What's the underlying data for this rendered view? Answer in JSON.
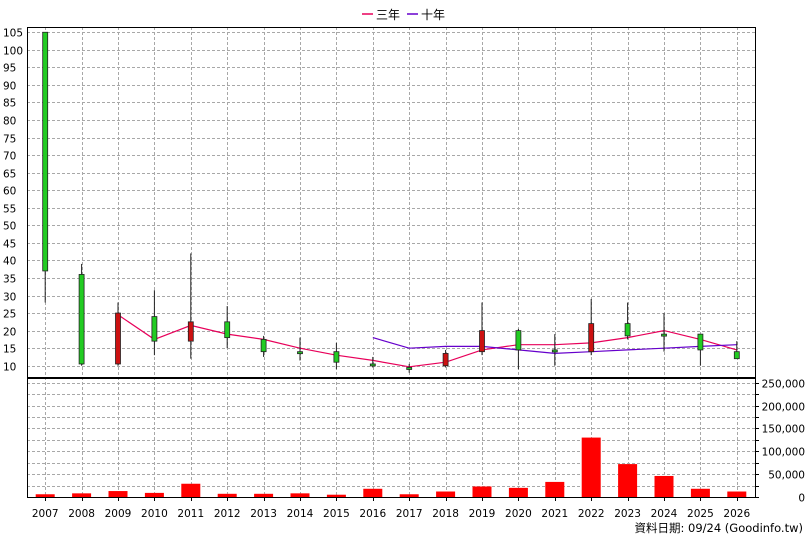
{
  "chart_data": {
    "type": "candlestick-with-volume",
    "legend_position": "top-center",
    "grid": true,
    "legend": [
      {
        "name": "三年",
        "color": "#e8005a"
      },
      {
        "name": "十年",
        "color": "#6600cc"
      }
    ],
    "years": [
      "2007",
      "2008",
      "2009",
      "2010",
      "2011",
      "2012",
      "2013",
      "2014",
      "2015",
      "2016",
      "2017",
      "2018",
      "2019",
      "2020",
      "2021",
      "2022",
      "2023",
      "2024",
      "2025",
      "2026"
    ],
    "price_axis": {
      "min": 6.5,
      "max": 106.5,
      "ticks": [
        10,
        15,
        20,
        25,
        30,
        35,
        40,
        45,
        50,
        55,
        60,
        65,
        70,
        75,
        80,
        85,
        90,
        95,
        100,
        105
      ]
    },
    "candles": [
      {
        "year": "2007",
        "open": 105,
        "close": 37,
        "high": 105,
        "low": 28,
        "color": "#22cc22"
      },
      {
        "year": "2008",
        "open": 36,
        "close": 10.5,
        "high": 39,
        "low": 10,
        "color": "#22cc22"
      },
      {
        "year": "2009",
        "open": 10.5,
        "close": 25,
        "high": 28,
        "low": 10,
        "color": "#cc1111"
      },
      {
        "year": "2010",
        "open": 24,
        "close": 17,
        "high": 31.5,
        "low": 13,
        "color": "#22cc22"
      },
      {
        "year": "2011",
        "open": 17,
        "close": 22.5,
        "high": 42,
        "low": 12,
        "color": "#cc1111"
      },
      {
        "year": "2012",
        "open": 22.5,
        "close": 18,
        "high": 27,
        "low": 15,
        "color": "#22cc22"
      },
      {
        "year": "2013",
        "open": 17.5,
        "close": 14,
        "high": 18.5,
        "low": 12.5,
        "color": "#22cc22"
      },
      {
        "year": "2014",
        "open": 14,
        "close": 13.5,
        "high": 18,
        "low": 11.5,
        "color": "#22cc22"
      },
      {
        "year": "2015",
        "open": 14,
        "close": 11,
        "high": 16.5,
        "low": 9,
        "color": "#22cc22"
      },
      {
        "year": "2016",
        "open": 10.5,
        "close": 10,
        "high": 12.5,
        "low": 9.5,
        "color": "#22cc22"
      },
      {
        "year": "2017",
        "open": 9.5,
        "close": 9.5,
        "high": 10.5,
        "low": 8,
        "color": "#22cc22"
      },
      {
        "year": "2018",
        "open": 10,
        "close": 13.5,
        "high": 14.5,
        "low": 9.5,
        "color": "#cc1111"
      },
      {
        "year": "2019",
        "open": 14,
        "close": 20,
        "high": 28,
        "low": 13,
        "color": "#cc1111"
      },
      {
        "year": "2020",
        "open": 20,
        "close": 14.5,
        "high": 20.5,
        "low": 9,
        "color": "#22cc22"
      },
      {
        "year": "2021",
        "open": 14,
        "close": 14.5,
        "high": 19,
        "low": 10,
        "color": "#22cc22"
      },
      {
        "year": "2022",
        "open": 14,
        "close": 22,
        "high": 29,
        "low": 13,
        "color": "#cc1111"
      },
      {
        "year": "2023",
        "open": 22,
        "close": 18.5,
        "high": 28,
        "low": 17.5,
        "color": "#22cc22"
      },
      {
        "year": "2024",
        "open": 19,
        "close": 19,
        "high": 25,
        "low": 14,
        "color": "#22cc22"
      },
      {
        "year": "2025",
        "open": 19,
        "close": 14.5,
        "high": 19,
        "low": 10,
        "color": "#22cc22"
      },
      {
        "year": "2026",
        "open": 14,
        "close": 12,
        "high": 17,
        "low": 12,
        "color": "#22cc22"
      }
    ],
    "series": [
      {
        "name": "三年",
        "color": "#e8005a",
        "start_year": "2009",
        "values": [
          24.5,
          17.5,
          21.5,
          19,
          17.5,
          15,
          13,
          11.5,
          9.7,
          11,
          14.5,
          16,
          16,
          16.5,
          18,
          20,
          17.5,
          14.5
        ]
      },
      {
        "name": "十年",
        "color": "#6600cc",
        "start_year": "2016",
        "values": [
          18,
          15,
          15.5,
          15.5,
          14.5,
          13.5,
          14,
          14.5,
          15,
          15.5,
          16
        ]
      }
    ],
    "volume_axis": {
      "min": 0,
      "max": 262500,
      "ticks": [
        0,
        25000,
        50000,
        75000,
        100000,
        125000,
        150000,
        175000,
        200000,
        225000,
        250000
      ],
      "tick_labels": [
        "0",
        "",
        "50,000",
        "",
        "100,000",
        "",
        "150,000",
        "",
        "200,000",
        "",
        "250,000"
      ]
    },
    "volume": [
      6000,
      8000,
      13000,
      9000,
      29000,
      7000,
      7000,
      8000,
      5000,
      18000,
      6000,
      12000,
      23000,
      20000,
      33000,
      130000,
      72000,
      46000,
      18000,
      12000
    ],
    "volume_color": "#ff0000"
  },
  "footer": {
    "label": "資料日期: 09/24  (Goodinfo.tw)"
  }
}
